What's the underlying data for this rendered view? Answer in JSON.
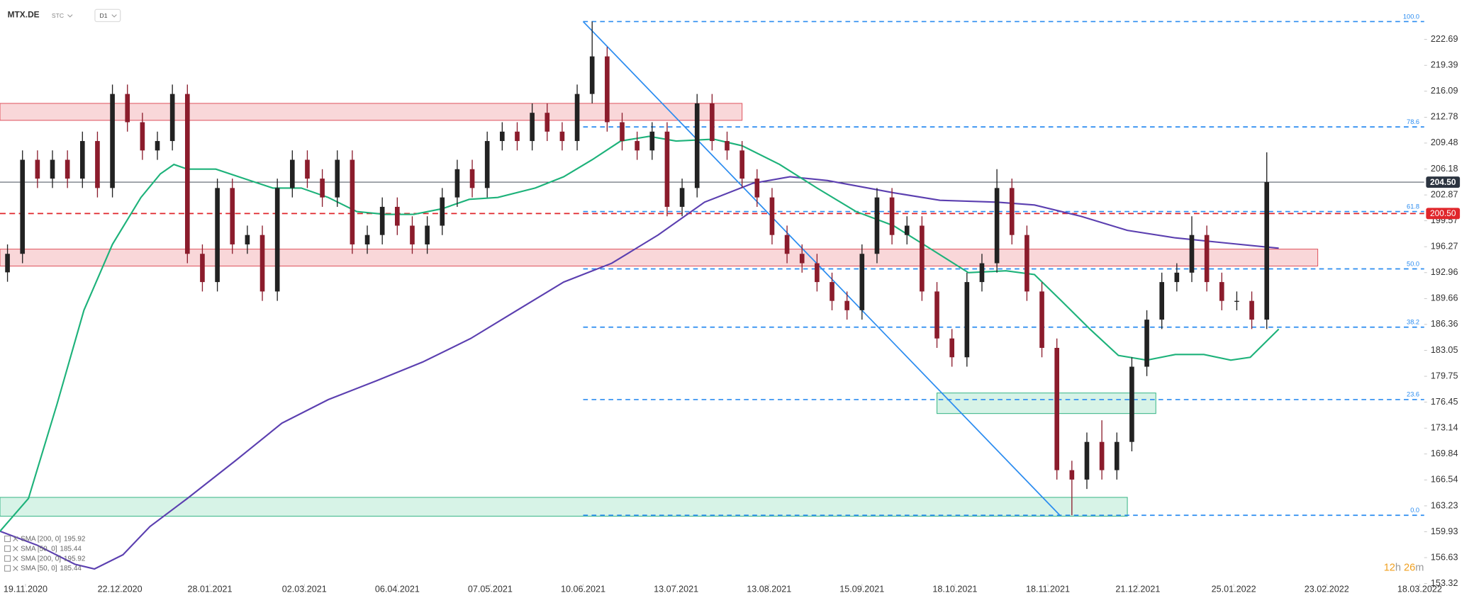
{
  "chart_data": {
    "type": "candlestick",
    "symbol": "MTX.DE",
    "source": "STC",
    "timeframe": "D1",
    "ylim": [
      152.92,
      227.72
    ],
    "xlim": [
      0,
      95
    ],
    "yticks": [
      222.69,
      219.39,
      216.09,
      212.78,
      209.48,
      206.18,
      202.87,
      199.57,
      196.27,
      192.96,
      189.66,
      186.36,
      183.05,
      179.75,
      176.45,
      173.14,
      169.84,
      166.54,
      163.23,
      159.93,
      156.63,
      153.32
    ],
    "xticks": [
      {
        "value": 1.7,
        "label": "19.11.2020"
      },
      {
        "value": 8.0,
        "label": "22.12.2020"
      },
      {
        "value": 14.0,
        "label": "28.01.2021"
      },
      {
        "value": 20.3,
        "label": "02.03.2021"
      },
      {
        "value": 26.5,
        "label": "06.04.2021"
      },
      {
        "value": 32.7,
        "label": "07.05.2021"
      },
      {
        "value": 38.9,
        "label": "10.06.2021"
      },
      {
        "value": 45.1,
        "label": "13.07.2021"
      },
      {
        "value": 51.3,
        "label": "13.08.2021"
      },
      {
        "value": 57.5,
        "label": "15.09.2021"
      },
      {
        "value": 63.7,
        "label": "18.10.2021"
      },
      {
        "value": 69.9,
        "label": "18.11.2021"
      },
      {
        "value": 75.9,
        "label": "21.12.2021"
      },
      {
        "value": 82.3,
        "label": "25.01.2022"
      },
      {
        "value": 88.5,
        "label": "23.02.2022"
      },
      {
        "value": 94.7,
        "label": "18.03.2022"
      }
    ],
    "up_color": "#222222",
    "down_color": "#8b1c2c",
    "candles": {
      "open": [
        193.0,
        195.36,
        207.35,
        204.95,
        207.35,
        204.95,
        209.74,
        203.75,
        215.74,
        212.14,
        208.54,
        209.74,
        215.74,
        195.36,
        191.76,
        203.75,
        196.56,
        197.76,
        190.56,
        203.75,
        207.35,
        204.95,
        202.55,
        207.35,
        196.56,
        197.76,
        201.35,
        198.95,
        196.56,
        198.95,
        202.55,
        206.15,
        203.75,
        209.74,
        210.94,
        209.74,
        213.34,
        210.94,
        209.74,
        215.74,
        220.53,
        212.14,
        209.74,
        208.54,
        210.94,
        201.35,
        203.75,
        214.54,
        209.74,
        208.54,
        204.95,
        202.55,
        197.76,
        195.36,
        194.16,
        191.76,
        189.36,
        188.17,
        195.36,
        202.55,
        197.76,
        198.95,
        190.56,
        184.57,
        182.17,
        191.76,
        194.16,
        203.75,
        197.76,
        190.56,
        183.37,
        167.78,
        166.58,
        171.38,
        167.78,
        171.38,
        180.97,
        186.97,
        191.76,
        192.96,
        197.76,
        191.76,
        189.36,
        189.36,
        186.97
      ],
      "high": [
        196.56,
        208.55,
        208.55,
        208.55,
        208.55,
        210.94,
        210.94,
        216.94,
        216.94,
        213.34,
        210.94,
        216.94,
        216.94,
        196.56,
        204.95,
        204.95,
        198.96,
        198.96,
        204.95,
        208.55,
        208.55,
        206.15,
        208.55,
        208.55,
        198.96,
        202.55,
        202.55,
        200.15,
        200.15,
        203.75,
        207.35,
        207.35,
        210.94,
        212.14,
        212.14,
        214.54,
        214.54,
        212.14,
        216.94,
        224.97,
        221.73,
        213.34,
        210.94,
        212.14,
        212.14,
        204.95,
        215.74,
        215.74,
        210.94,
        209.74,
        206.15,
        203.75,
        198.96,
        196.56,
        195.36,
        192.96,
        190.56,
        196.56,
        203.75,
        203.75,
        200.15,
        200.15,
        191.76,
        185.77,
        192.96,
        195.36,
        206.15,
        204.95,
        198.96,
        191.76,
        184.57,
        168.98,
        172.58,
        174.14,
        172.58,
        182.17,
        188.17,
        192.96,
        194.16,
        200.15,
        198.96,
        192.96,
        190.56,
        190.56,
        208.3
      ],
      "low": [
        191.8,
        194.16,
        203.75,
        203.75,
        203.75,
        203.75,
        202.55,
        202.55,
        210.94,
        207.34,
        207.34,
        208.54,
        194.16,
        190.56,
        190.56,
        195.36,
        195.36,
        189.36,
        189.36,
        202.55,
        203.75,
        201.35,
        201.35,
        195.36,
        195.36,
        196.56,
        197.75,
        195.36,
        195.36,
        197.75,
        201.35,
        202.55,
        202.55,
        208.54,
        208.54,
        208.54,
        209.74,
        208.54,
        208.54,
        214.54,
        210.94,
        208.54,
        207.34,
        207.34,
        200.15,
        200.15,
        202.55,
        208.54,
        207.34,
        203.75,
        201.35,
        196.56,
        194.16,
        192.96,
        190.56,
        188.16,
        186.97,
        186.97,
        194.16,
        196.56,
        196.56,
        189.36,
        183.37,
        180.97,
        180.97,
        190.56,
        192.96,
        196.56,
        189.36,
        182.17,
        166.58,
        162.03,
        165.38,
        166.58,
        166.58,
        170.18,
        179.77,
        185.77,
        190.56,
        191.76,
        190.56,
        188.16,
        188.16,
        185.77,
        185.77
      ],
      "close": [
        195.36,
        207.35,
        204.95,
        207.35,
        204.95,
        209.74,
        203.75,
        215.74,
        212.14,
        208.54,
        209.74,
        215.74,
        195.36,
        191.76,
        203.75,
        196.56,
        197.76,
        190.56,
        203.75,
        207.35,
        204.95,
        202.55,
        207.35,
        196.56,
        197.76,
        201.35,
        198.95,
        196.56,
        198.95,
        202.55,
        206.15,
        203.75,
        209.74,
        210.94,
        209.74,
        213.34,
        210.94,
        209.74,
        215.74,
        220.53,
        212.14,
        209.74,
        208.54,
        210.94,
        201.35,
        203.75,
        214.54,
        209.74,
        208.54,
        204.95,
        202.55,
        197.76,
        195.36,
        194.16,
        191.76,
        189.36,
        188.17,
        195.36,
        202.55,
        197.76,
        198.95,
        190.56,
        184.57,
        182.17,
        191.76,
        194.16,
        203.75,
        197.76,
        190.56,
        183.37,
        167.78,
        166.58,
        171.38,
        167.78,
        171.38,
        180.97,
        186.97,
        191.76,
        192.96,
        197.76,
        191.76,
        189.36,
        189.36,
        186.97,
        204.5
      ]
    },
    "series": [
      {
        "color": "#5b3fb0",
        "x": [
          0,
          2.5,
          5.0,
          6.3,
          8.2,
          10.0,
          12.5,
          15.7,
          18.8,
          21.9,
          25.1,
          28.2,
          31.4,
          34.5,
          37.6,
          40.8,
          43.9,
          47.0,
          50.2,
          52.7,
          55.2,
          59.6,
          62.7,
          66.5,
          69.0,
          72.1,
          75.2,
          78.4,
          81.5,
          85.3
        ],
        "values": [
          159.99,
          158.19,
          155.79,
          155.19,
          156.99,
          160.59,
          164.18,
          168.98,
          173.77,
          176.78,
          179.17,
          181.57,
          184.57,
          188.17,
          191.76,
          194.16,
          197.76,
          201.95,
          204.35,
          205.19,
          204.71,
          203.15,
          202.19,
          201.95,
          201.59,
          200.15,
          198.35,
          197.39,
          196.79,
          196.07
        ]
      },
      {
        "color": "#1db27a",
        "x": [
          0,
          1.9,
          3.8,
          5.6,
          7.5,
          9.4,
          10.7,
          11.6,
          12.5,
          14.4,
          16.3,
          18.2,
          20.1,
          21.9,
          23.8,
          25.7,
          27.6,
          29.5,
          31.3,
          33.2,
          35.7,
          37.6,
          39.5,
          41.4,
          43.3,
          45.1,
          47.6,
          49.5,
          52.0,
          54.5,
          57.1,
          59.6,
          62.1,
          64.6,
          67.1,
          69.0,
          70.8,
          72.7,
          74.6,
          76.5,
          78.4,
          80.3,
          82.1,
          83.4,
          85.3
        ],
        "values": [
          159.99,
          164.18,
          176.18,
          188.17,
          196.56,
          202.55,
          205.55,
          206.75,
          206.15,
          206.15,
          204.95,
          203.75,
          203.75,
          202.55,
          200.75,
          200.39,
          200.39,
          201.11,
          202.31,
          202.55,
          203.75,
          205.19,
          207.35,
          209.74,
          210.34,
          209.74,
          209.98,
          209.14,
          206.75,
          203.75,
          200.75,
          198.95,
          195.96,
          192.96,
          193.2,
          192.72,
          189.36,
          185.77,
          182.41,
          181.81,
          182.53,
          182.53,
          181.81,
          182.17,
          185.77
        ]
      }
    ],
    "zones": [
      {
        "color": "#f7c9cc",
        "border": "#e05a63",
        "x": [
          0,
          49.5
        ],
        "y": [
          214.54,
          212.38
        ]
      },
      {
        "color": "#f7c9cc",
        "border": "#e05a63",
        "x": [
          0,
          87.9
        ],
        "y": [
          195.96,
          193.8
        ]
      },
      {
        "color": "#c9efdf",
        "border": "#3fb88a",
        "x": [
          62.5,
          77.1
        ],
        "y": [
          177.62,
          175.0
        ]
      },
      {
        "color": "#c9efdf",
        "border": "#3fb88a",
        "x": [
          0,
          75.2
        ],
        "y": [
          164.31,
          161.91
        ]
      }
    ],
    "trendline": {
      "color": "#2b8cf0",
      "x": [
        38.9,
        70.7
      ],
      "y": [
        224.97,
        162.03
      ]
    },
    "fib": {
      "color": "#2b8cf0",
      "levels": [
        {
          "value": 100,
          "label": "100.0"
        },
        {
          "value": 78.6,
          "label": "78.6"
        },
        {
          "value": 61.8,
          "label": "61.8"
        },
        {
          "value": 50,
          "label": "50.0"
        },
        {
          "value": 38.2,
          "label": "38.2"
        },
        {
          "value": 23.6,
          "label": "23.6"
        },
        {
          "value": 0,
          "label": "0.0"
        }
      ],
      "prices": [
        224.97,
        211.54,
        200.75,
        193.44,
        186.01,
        176.78,
        162.03
      ]
    },
    "hlines": [
      {
        "value": 200.5,
        "label": "200.50",
        "color": "#e0262b",
        "dashed": true
      },
      {
        "value": 204.5,
        "label": "204.50",
        "color": "#2c3440",
        "dashed": false
      }
    ],
    "legend": [
      {
        "label": "SMA [200, 0]",
        "value": 195.92
      },
      {
        "label": "SMA [50, 0]",
        "value": 185.44
      },
      {
        "label": "SMA [200, 0]",
        "value": 195.92
      },
      {
        "label": "SMA [50, 0]",
        "value": 185.44
      }
    ],
    "timer": [
      "12",
      "h",
      "26",
      "m"
    ]
  }
}
